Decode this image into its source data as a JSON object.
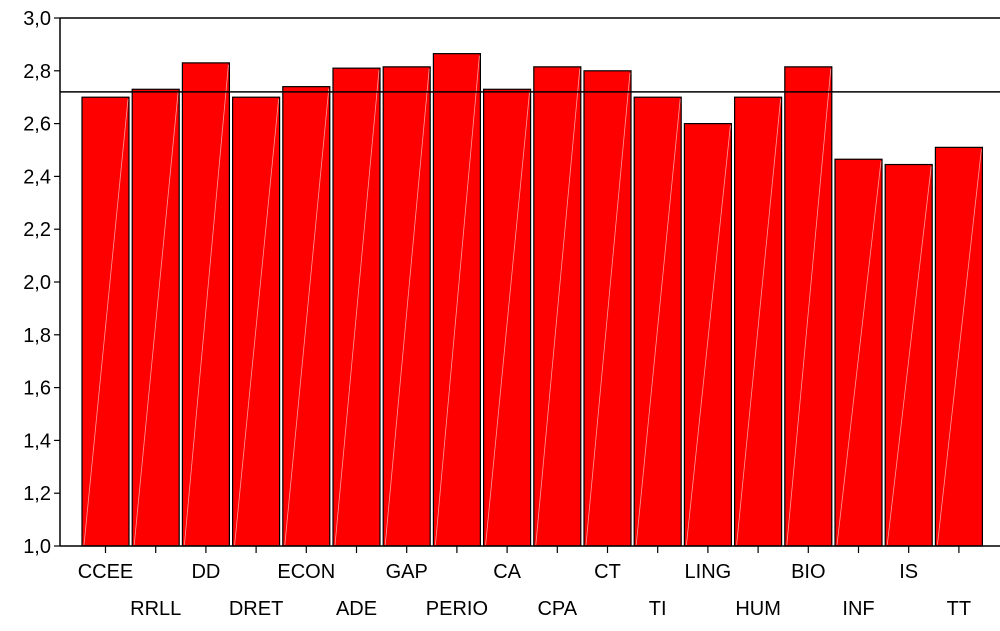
{
  "chart_data": {
    "type": "bar",
    "title": "",
    "xlabel": "",
    "ylabel": "",
    "ylim": [
      1.0,
      3.0
    ],
    "yticks": [
      "1,0",
      "1,2",
      "1,4",
      "1,6",
      "1,8",
      "2,0",
      "2,2",
      "2,4",
      "2,6",
      "2,8",
      "3,0"
    ],
    "ytick_values": [
      1.0,
      1.2,
      1.4,
      1.6,
      1.8,
      2.0,
      2.2,
      2.4,
      2.6,
      2.8,
      3.0
    ],
    "categories": [
      "CCEE",
      "RRLL",
      "DD",
      "DRET",
      "ECON",
      "ADE",
      "GAP",
      "PERIO",
      "CA",
      "CPA",
      "CT",
      "TI",
      "LING",
      "HUM",
      "BIO",
      "INF",
      "IS",
      "TT"
    ],
    "values": [
      2.7,
      2.73,
      2.83,
      2.7,
      2.74,
      2.81,
      2.815,
      2.865,
      2.73,
      2.815,
      2.8,
      2.7,
      2.6,
      2.7,
      2.815,
      2.465,
      2.445,
      2.51
    ],
    "reference_line": 2.72,
    "bar_color": "#ff0000",
    "grid": false,
    "legend": "none"
  }
}
